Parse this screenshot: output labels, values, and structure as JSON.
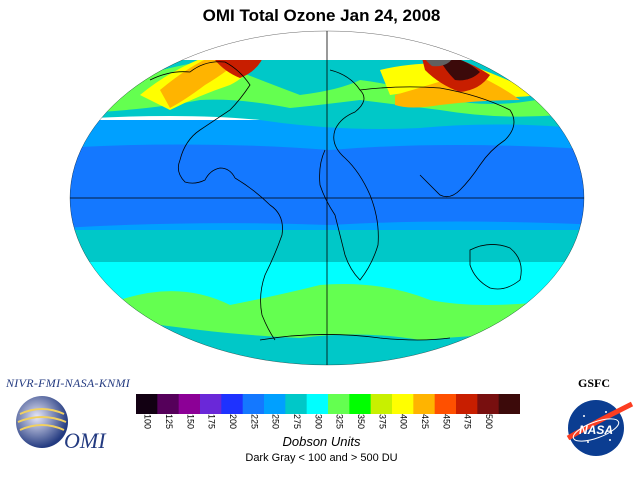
{
  "title": "OMI Total Ozone Jan 24, 2008",
  "credits": "NIVR-FMI-NASA-KNMI",
  "omi_logo_text": "OMI",
  "gsfc_label": "GSFC",
  "nasa_logo_text": "NASA",
  "colorbar": {
    "ticks": [
      "100",
      "125",
      "150",
      "175",
      "200",
      "225",
      "250",
      "275",
      "300",
      "325",
      "350",
      "375",
      "400",
      "425",
      "450",
      "475",
      "500"
    ],
    "colors": [
      "#120012",
      "#55005a",
      "#8c0096",
      "#6a28d8",
      "#1e32ff",
      "#1478ff",
      "#00a0ff",
      "#00c8c8",
      "#00ffff",
      "#64ff50",
      "#00ff00",
      "#c8f000",
      "#ffff00",
      "#ffb400",
      "#ff5000",
      "#c81e00",
      "#780f0f",
      "#3c0a0a"
    ],
    "units_label": "Dobson Units",
    "note": "Dark Gray < 100 and > 500 DU"
  },
  "map_colors": {
    "band_south_polar": "#00c8c8",
    "band_southern_mid": "#00ffff",
    "band_southern_green": "#64ff50",
    "band_tropics": "#1478ff",
    "band_tropics_edge": "#00a0ff",
    "band_north_mid": "#00c8c8",
    "band_north_green": "#64ff50",
    "band_north_yellow": "#ffff00",
    "band_north_orange": "#ffb400",
    "band_north_red": "#c81e00",
    "band_north_brown": "#780f0f",
    "band_north_dark": "#3c0a0a",
    "no_data_gray": "#606060",
    "no_data_white": "#ffffff",
    "coastline": "#000000",
    "graticule": "#000000"
  }
}
